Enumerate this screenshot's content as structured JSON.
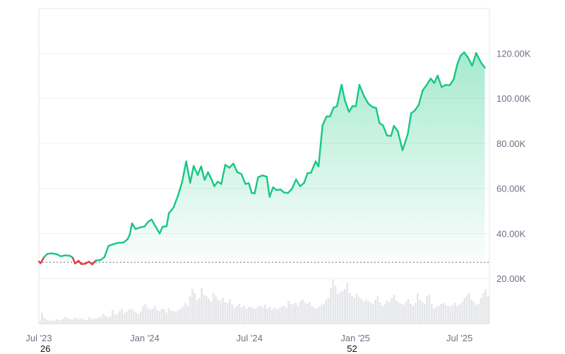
{
  "chart_data": {
    "type": "area",
    "y_ticks": [
      {
        "value": 20000,
        "label": "20.00K"
      },
      {
        "value": 40000,
        "label": "40.00K"
      },
      {
        "value": 60000,
        "label": "60.00K"
      },
      {
        "value": 80000,
        "label": "80.00K"
      },
      {
        "value": 100000,
        "label": "100.00K"
      },
      {
        "value": 120000,
        "label": "120.00K"
      }
    ],
    "x_ticks": [
      {
        "date": "2023-07-01",
        "label": "Jul '23"
      },
      {
        "date": "2024-01-01",
        "label": "Jan '24"
      },
      {
        "date": "2024-07-01",
        "label": "Jul '24"
      },
      {
        "date": "2025-01-01",
        "label": "Jan '25"
      },
      {
        "date": "2025-07-01",
        "label": "Jul '25"
      }
    ],
    "period_labels": [
      {
        "date": "2023-07-01",
        "label": "26"
      },
      {
        "date": "2024-12-15",
        "label": "52"
      }
    ],
    "ylim": [
      0,
      138000
    ],
    "xlim": [
      "2023-07-01",
      "2025-08-22"
    ],
    "baseline": 27200,
    "colors": {
      "up": "#16c784",
      "down": "#ea3943",
      "baseline": "#8a8a8a"
    },
    "price_series": [
      [
        "2023-07-01",
        27600
      ],
      [
        "2023-07-04",
        26800
      ],
      [
        "2023-07-10",
        29500
      ],
      [
        "2023-07-16",
        31000
      ],
      [
        "2023-07-24",
        31200
      ],
      [
        "2023-08-01",
        30800
      ],
      [
        "2023-08-08",
        29900
      ],
      [
        "2023-08-16",
        30300
      ],
      [
        "2023-08-24",
        30100
      ],
      [
        "2023-08-29",
        29200
      ],
      [
        "2023-09-02",
        26700
      ],
      [
        "2023-09-08",
        27900
      ],
      [
        "2023-09-13",
        26400
      ],
      [
        "2023-09-20",
        26600
      ],
      [
        "2023-09-26",
        27500
      ],
      [
        "2023-10-02",
        26300
      ],
      [
        "2023-10-08",
        28000
      ],
      [
        "2023-10-16",
        28200
      ],
      [
        "2023-10-23",
        29500
      ],
      [
        "2023-10-30",
        34500
      ],
      [
        "2023-11-08",
        35300
      ],
      [
        "2023-11-15",
        35800
      ],
      [
        "2023-11-25",
        36000
      ],
      [
        "2023-12-02",
        37400
      ],
      [
        "2023-12-06",
        39500
      ],
      [
        "2023-12-10",
        44500
      ],
      [
        "2023-12-16",
        42000
      ],
      [
        "2023-12-24",
        42700
      ],
      [
        "2024-01-01",
        43200
      ],
      [
        "2024-01-07",
        45200
      ],
      [
        "2024-01-13",
        46200
      ],
      [
        "2024-01-20",
        43000
      ],
      [
        "2024-01-27",
        40000
      ],
      [
        "2024-02-01",
        43000
      ],
      [
        "2024-02-08",
        43200
      ],
      [
        "2024-02-12",
        49000
      ],
      [
        "2024-02-20",
        51500
      ],
      [
        "2024-02-28",
        57000
      ],
      [
        "2024-03-06",
        62800
      ],
      [
        "2024-03-13",
        72000
      ],
      [
        "2024-03-20",
        62500
      ],
      [
        "2024-03-26",
        70000
      ],
      [
        "2024-04-02",
        66000
      ],
      [
        "2024-04-08",
        69800
      ],
      [
        "2024-04-14",
        63800
      ],
      [
        "2024-04-20",
        67200
      ],
      [
        "2024-04-26",
        64000
      ],
      [
        "2024-05-01",
        61000
      ],
      [
        "2024-05-07",
        63000
      ],
      [
        "2024-05-13",
        62000
      ],
      [
        "2024-05-20",
        70500
      ],
      [
        "2024-05-27",
        69200
      ],
      [
        "2024-06-03",
        71000
      ],
      [
        "2024-06-10",
        67200
      ],
      [
        "2024-06-17",
        66400
      ],
      [
        "2024-06-24",
        62000
      ],
      [
        "2024-06-30",
        62300
      ],
      [
        "2024-07-05",
        58000
      ],
      [
        "2024-07-10",
        57800
      ],
      [
        "2024-07-16",
        65000
      ],
      [
        "2024-07-24",
        65800
      ],
      [
        "2024-07-31",
        65200
      ],
      [
        "2024-08-05",
        56300
      ],
      [
        "2024-08-11",
        60500
      ],
      [
        "2024-08-17",
        59300
      ],
      [
        "2024-08-24",
        59500
      ],
      [
        "2024-08-30",
        58200
      ],
      [
        "2024-09-06",
        58000
      ],
      [
        "2024-09-13",
        59900
      ],
      [
        "2024-09-20",
        64000
      ],
      [
        "2024-09-27",
        61000
      ],
      [
        "2024-10-04",
        62500
      ],
      [
        "2024-10-10",
        66800
      ],
      [
        "2024-10-16",
        67000
      ],
      [
        "2024-10-24",
        72000
      ],
      [
        "2024-10-29",
        69800
      ],
      [
        "2024-11-05",
        88000
      ],
      [
        "2024-11-12",
        92000
      ],
      [
        "2024-11-18",
        92000
      ],
      [
        "2024-11-24",
        95800
      ],
      [
        "2024-11-30",
        96500
      ],
      [
        "2024-12-08",
        106000
      ],
      [
        "2024-12-14",
        99000
      ],
      [
        "2024-12-21",
        94000
      ],
      [
        "2024-12-27",
        96500
      ],
      [
        "2025-01-02",
        96500
      ],
      [
        "2025-01-08",
        106000
      ],
      [
        "2025-01-16",
        101000
      ],
      [
        "2025-01-24",
        97500
      ],
      [
        "2025-02-01",
        96000
      ],
      [
        "2025-02-06",
        95800
      ],
      [
        "2025-02-12",
        89000
      ],
      [
        "2025-02-18",
        88000
      ],
      [
        "2025-02-25",
        83500
      ],
      [
        "2025-03-04",
        83300
      ],
      [
        "2025-03-09",
        87800
      ],
      [
        "2025-03-16",
        85300
      ],
      [
        "2025-03-24",
        77000
      ],
      [
        "2025-04-02",
        84000
      ],
      [
        "2025-04-08",
        93400
      ],
      [
        "2025-04-14",
        94500
      ],
      [
        "2025-04-21",
        97000
      ],
      [
        "2025-04-28",
        103500
      ],
      [
        "2025-05-05",
        106000
      ],
      [
        "2025-05-12",
        108800
      ],
      [
        "2025-05-18",
        106800
      ],
      [
        "2025-05-24",
        110100
      ],
      [
        "2025-05-31",
        105000
      ],
      [
        "2025-06-07",
        106000
      ],
      [
        "2025-06-14",
        105800
      ],
      [
        "2025-06-21",
        108500
      ],
      [
        "2025-06-27",
        115000
      ],
      [
        "2025-07-03",
        119000
      ],
      [
        "2025-07-09",
        120400
      ],
      [
        "2025-07-16",
        118000
      ],
      [
        "2025-07-23",
        114500
      ],
      [
        "2025-07-30",
        120100
      ],
      [
        "2025-08-07",
        116000
      ],
      [
        "2025-08-14",
        113600
      ]
    ],
    "volume_series": [
      [
        0.05,
        0.22,
        0.12,
        0.08,
        0.06,
        0.07,
        0.05,
        0.09,
        0.08,
        0.07,
        0.1,
        0.14,
        0.11,
        0.09,
        0.08,
        0.12,
        0.1,
        0.09,
        0.11,
        0.08,
        0.07,
        0.13,
        0.1,
        0.09,
        0.11,
        0.12,
        0.14,
        0.2,
        0.16,
        0.12,
        0.15,
        0.28,
        0.18,
        0.2,
        0.25,
        0.3,
        0.22,
        0.24,
        0.28,
        0.3,
        0.26,
        0.22,
        0.2,
        0.25,
        0.35,
        0.4,
        0.32,
        0.28,
        0.3,
        0.36,
        0.27,
        0.25,
        0.3,
        0.29,
        0.22,
        0.31,
        0.26,
        0.25,
        0.24,
        0.27,
        0.3,
        0.35,
        0.42,
        0.36,
        0.55,
        0.7,
        0.62,
        0.48,
        0.52,
        0.72,
        0.58,
        0.56,
        0.5,
        0.44,
        0.62,
        0.55,
        0.48,
        0.46,
        0.52,
        0.44,
        0.42,
        0.5,
        0.38,
        0.32,
        0.35,
        0.4,
        0.33,
        0.36,
        0.3,
        0.34,
        0.33,
        0.32,
        0.3,
        0.35,
        0.36,
        0.33,
        0.38,
        0.3,
        0.34,
        0.28,
        0.32,
        0.3,
        0.31,
        0.34,
        0.36,
        0.32,
        0.46,
        0.4,
        0.38,
        0.42,
        0.36,
        0.45,
        0.49,
        0.42,
        0.4,
        0.44,
        0.36,
        0.32,
        0.3,
        0.34,
        0.38,
        0.4,
        0.48,
        0.52,
        0.72,
        0.9,
        0.76,
        0.6,
        0.64,
        0.66,
        0.7,
        0.82,
        0.62,
        0.56,
        0.52,
        0.6,
        0.54,
        0.5,
        0.44,
        0.48,
        0.46,
        0.42,
        0.4,
        0.48,
        0.56,
        0.42,
        0.36,
        0.4,
        0.46,
        0.44,
        0.52,
        0.58,
        0.46,
        0.42,
        0.4,
        0.38,
        0.44,
        0.5,
        0.4,
        0.36,
        0.42,
        0.62,
        0.48,
        0.44,
        0.4,
        0.56,
        0.58,
        0.4,
        0.3,
        0.34,
        0.36,
        0.4,
        0.42,
        0.38,
        0.36,
        0.34,
        0.38,
        0.42,
        0.36,
        0.4,
        0.44,
        0.52,
        0.58,
        0.62,
        0.48,
        0.44,
        0.38,
        0.4,
        0.52,
        0.62,
        0.7,
        0.55
      ]
    ]
  }
}
